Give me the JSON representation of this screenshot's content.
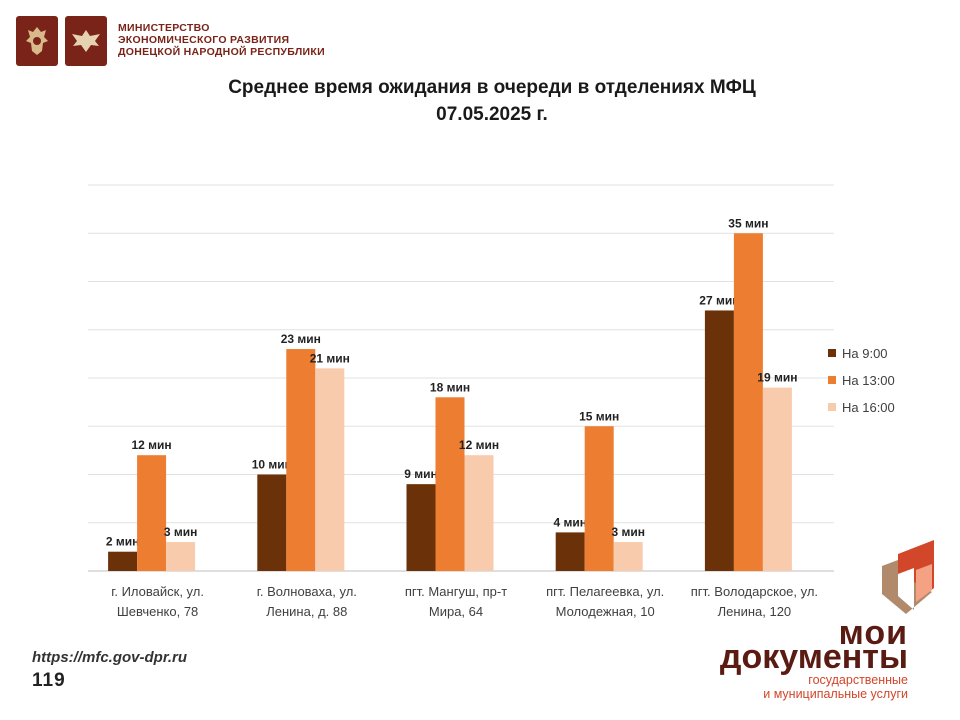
{
  "header": {
    "ministry_lines": [
      "МИНИСТЕРСТВО",
      "ЭКОНОМИЧЕСКОГО РАЗВИТИЯ",
      "ДОНЕЦКОЙ НАРОДНОЙ РЕСПУБЛИКИ"
    ]
  },
  "title": {
    "line1": "Среднее время ожидания в очереди в отделениях МФЦ",
    "line2": "07.05.2025 г."
  },
  "chart_data": {
    "type": "bar",
    "title": "Среднее время ожидания в очереди в отделениях МФЦ 07.05.2025 г.",
    "categories": [
      [
        "г. Иловайск, ул.",
        "Шевченко, 78"
      ],
      [
        "г. Волноваха, ул.",
        "Ленина, д. 88"
      ],
      [
        "пгт. Мангуш, пр-т",
        "Мира, 64"
      ],
      [
        "пгт. Пелагеевка, ул.",
        "Молодежная, 10"
      ],
      [
        "пгт. Володарское, ул.",
        "Ленина, 120"
      ]
    ],
    "series": [
      {
        "name": "На 9:00",
        "color": "#6b3108",
        "values": [
          2,
          10,
          9,
          4,
          27
        ],
        "labels": [
          "2 мин",
          "10 мин",
          "9 мин",
          "4 мин",
          "27 мин"
        ]
      },
      {
        "name": "На 13:00",
        "color": "#ed7d31",
        "values": [
          12,
          23,
          18,
          15,
          35
        ],
        "labels": [
          "12  мин",
          "23 мин",
          "18 мин",
          "15 мин",
          "35 мин"
        ]
      },
      {
        "name": "На 16:00",
        "color": "#f8cbad",
        "values": [
          3,
          21,
          12,
          3,
          19
        ],
        "labels": [
          "3 мин",
          "21 мин",
          "12 мин",
          "3 мин",
          "19 мин"
        ]
      }
    ],
    "ylim": [
      0,
      40
    ],
    "grid": true,
    "legend": "right"
  },
  "footer": {
    "url": "https://mfc.gov-dpr.ru",
    "page": "119"
  },
  "brand": {
    "line1": "мои",
    "line2": "документы",
    "line3": "государственные",
    "line4": "и муниципальные услуги",
    "colors": {
      "dark": "#5a1b12",
      "accent": "#d2462a",
      "light": "#f4a283"
    }
  }
}
